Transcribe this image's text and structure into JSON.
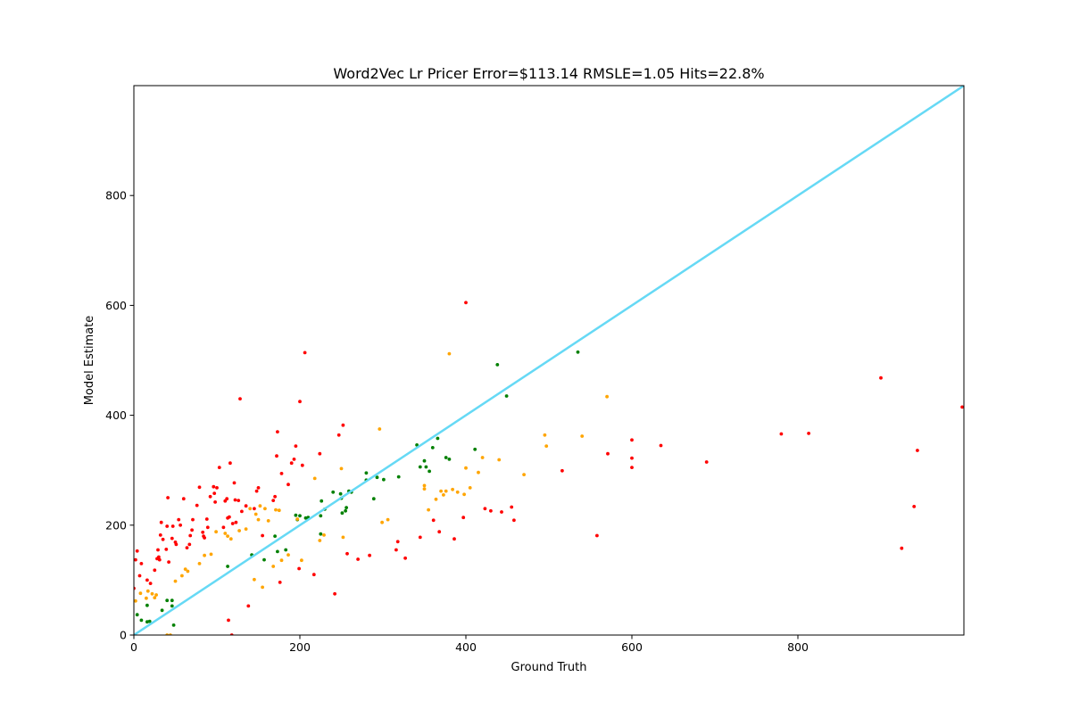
{
  "chart_data": {
    "type": "scatter",
    "title": "Word2Vec Lr Pricer Error=$113.14 RMSLE=1.05 Hits=22.8%",
    "xlabel": "Ground Truth",
    "ylabel": "Model Estimate",
    "xlim": [
      0,
      1000
    ],
    "ylim": [
      0,
      1000
    ],
    "xticks": [
      0,
      200,
      400,
      600,
      800
    ],
    "yticks": [
      0,
      200,
      400,
      600,
      800
    ],
    "grid": false,
    "reference_line": {
      "from": [
        0,
        0
      ],
      "to": [
        1000,
        1000
      ],
      "color": "#66d9f5"
    },
    "colors": {
      "green": "#008000",
      "orange": "#ffa500",
      "red": "#ff0000"
    },
    "series": [
      {
        "color": "green",
        "points": [
          [
            4,
            37
          ],
          [
            9,
            27
          ],
          [
            16,
            24
          ],
          [
            16,
            54
          ],
          [
            19,
            25
          ],
          [
            34,
            45
          ],
          [
            40,
            63
          ],
          [
            46,
            63
          ],
          [
            46,
            53
          ],
          [
            48,
            18
          ],
          [
            113,
            125
          ],
          [
            142,
            146
          ],
          [
            157,
            137
          ],
          [
            170,
            180
          ],
          [
            173,
            152
          ],
          [
            183,
            155
          ],
          [
            195,
            218
          ],
          [
            197,
            210
          ],
          [
            200,
            217
          ],
          [
            207,
            213
          ],
          [
            210,
            214
          ],
          [
            225,
            217
          ],
          [
            226,
            244
          ],
          [
            225,
            184
          ],
          [
            230,
            229
          ],
          [
            240,
            260
          ],
          [
            249,
            257
          ],
          [
            250,
            249
          ],
          [
            251,
            222
          ],
          [
            255,
            226
          ],
          [
            256,
            232
          ],
          [
            259,
            262
          ],
          [
            262,
            260
          ],
          [
            280,
            295
          ],
          [
            280,
            282
          ],
          [
            289,
            248
          ],
          [
            293,
            287
          ],
          [
            301,
            283
          ],
          [
            319,
            288
          ],
          [
            341,
            346
          ],
          [
            345,
            306
          ],
          [
            350,
            317
          ],
          [
            352,
            306
          ],
          [
            356,
            298
          ],
          [
            360,
            341
          ],
          [
            366,
            358
          ],
          [
            376,
            323
          ],
          [
            380,
            320
          ],
          [
            411,
            338
          ],
          [
            438,
            492
          ],
          [
            449,
            435
          ],
          [
            535,
            515
          ]
        ]
      },
      {
        "color": "orange",
        "points": [
          [
            2,
            62
          ],
          [
            8,
            76
          ],
          [
            15,
            67
          ],
          [
            17,
            80
          ],
          [
            22,
            75
          ],
          [
            25,
            68
          ],
          [
            27,
            73
          ],
          [
            40,
            0
          ],
          [
            44,
            0
          ],
          [
            50,
            98
          ],
          [
            58,
            108
          ],
          [
            62,
            120
          ],
          [
            65,
            116
          ],
          [
            79,
            130
          ],
          [
            85,
            145
          ],
          [
            93,
            147
          ],
          [
            99,
            188
          ],
          [
            110,
            185
          ],
          [
            113,
            180
          ],
          [
            117,
            175
          ],
          [
            127,
            190
          ],
          [
            135,
            193
          ],
          [
            140,
            230
          ],
          [
            145,
            101
          ],
          [
            147,
            220
          ],
          [
            150,
            210
          ],
          [
            152,
            235
          ],
          [
            155,
            87
          ],
          [
            158,
            230
          ],
          [
            162,
            208
          ],
          [
            168,
            125
          ],
          [
            171,
            228
          ],
          [
            175,
            227
          ],
          [
            178,
            136
          ],
          [
            186,
            146
          ],
          [
            197,
            211
          ],
          [
            202,
            136
          ],
          [
            218,
            285
          ],
          [
            224,
            172
          ],
          [
            229,
            182
          ],
          [
            250,
            303
          ],
          [
            252,
            178
          ],
          [
            296,
            375
          ],
          [
            299,
            205
          ],
          [
            306,
            210
          ],
          [
            350,
            272
          ],
          [
            350,
            266
          ],
          [
            355,
            228
          ],
          [
            364,
            247
          ],
          [
            370,
            262
          ],
          [
            373,
            255
          ],
          [
            376,
            262
          ],
          [
            380,
            512
          ],
          [
            384,
            265
          ],
          [
            390,
            260
          ],
          [
            398,
            256
          ],
          [
            400,
            304
          ],
          [
            405,
            268
          ],
          [
            415,
            296
          ],
          [
            420,
            323
          ],
          [
            440,
            319
          ],
          [
            470,
            292
          ],
          [
            495,
            364
          ],
          [
            497,
            344
          ],
          [
            540,
            362
          ],
          [
            570,
            434
          ]
        ]
      },
      {
        "color": "red",
        "points": [
          [
            0,
            85
          ],
          [
            2,
            137
          ],
          [
            4,
            153
          ],
          [
            7,
            108
          ],
          [
            9,
            130
          ],
          [
            16,
            100
          ],
          [
            20,
            94
          ],
          [
            25,
            118
          ],
          [
            28,
            139
          ],
          [
            29,
            155
          ],
          [
            30,
            142
          ],
          [
            31,
            137
          ],
          [
            32,
            182
          ],
          [
            33,
            205
          ],
          [
            35,
            174
          ],
          [
            39,
            156
          ],
          [
            40,
            198
          ],
          [
            41,
            250
          ],
          [
            42,
            133
          ],
          [
            46,
            176
          ],
          [
            47,
            198
          ],
          [
            50,
            169
          ],
          [
            51,
            165
          ],
          [
            54,
            210
          ],
          [
            56,
            200
          ],
          [
            60,
            248
          ],
          [
            64,
            159
          ],
          [
            67,
            165
          ],
          [
            68,
            181
          ],
          [
            70,
            191
          ],
          [
            71,
            210
          ],
          [
            76,
            236
          ],
          [
            79,
            269
          ],
          [
            83,
            187
          ],
          [
            84,
            180
          ],
          [
            85,
            177
          ],
          [
            88,
            211
          ],
          [
            89,
            196
          ],
          [
            92,
            252
          ],
          [
            96,
            270
          ],
          [
            97,
            258
          ],
          [
            98,
            242
          ],
          [
            100,
            268
          ],
          [
            103,
            305
          ],
          [
            108,
            196
          ],
          [
            110,
            244
          ],
          [
            112,
            248
          ],
          [
            113,
            213
          ],
          [
            114,
            27
          ],
          [
            115,
            215
          ],
          [
            116,
            313
          ],
          [
            118,
            0
          ],
          [
            119,
            203
          ],
          [
            121,
            277
          ],
          [
            122,
            246
          ],
          [
            123,
            205
          ],
          [
            126,
            245
          ],
          [
            128,
            430
          ],
          [
            130,
            225
          ],
          [
            135,
            235
          ],
          [
            138,
            53
          ],
          [
            145,
            230
          ],
          [
            148,
            262
          ],
          [
            150,
            268
          ],
          [
            155,
            181
          ],
          [
            168,
            245
          ],
          [
            170,
            252
          ],
          [
            172,
            326
          ],
          [
            173,
            370
          ],
          [
            176,
            96
          ],
          [
            178,
            294
          ],
          [
            186,
            274
          ],
          [
            190,
            313
          ],
          [
            193,
            320
          ],
          [
            195,
            344
          ],
          [
            199,
            121
          ],
          [
            200,
            425
          ],
          [
            203,
            309
          ],
          [
            206,
            514
          ],
          [
            217,
            110
          ],
          [
            224,
            330
          ],
          [
            242,
            75
          ],
          [
            247,
            364
          ],
          [
            252,
            382
          ],
          [
            257,
            148
          ],
          [
            270,
            138
          ],
          [
            284,
            145
          ],
          [
            316,
            155
          ],
          [
            318,
            170
          ],
          [
            327,
            140
          ],
          [
            345,
            178
          ],
          [
            361,
            209
          ],
          [
            368,
            188
          ],
          [
            386,
            175
          ],
          [
            397,
            214
          ],
          [
            400,
            605
          ],
          [
            423,
            230
          ],
          [
            430,
            226
          ],
          [
            443,
            224
          ],
          [
            455,
            233
          ],
          [
            458,
            209
          ],
          [
            516,
            299
          ],
          [
            558,
            181
          ],
          [
            571,
            330
          ],
          [
            600,
            355
          ],
          [
            600,
            322
          ],
          [
            600,
            305
          ],
          [
            635,
            345
          ],
          [
            690,
            315
          ],
          [
            780,
            366
          ],
          [
            813,
            367
          ],
          [
            900,
            468
          ],
          [
            925,
            158
          ],
          [
            940,
            234
          ],
          [
            944,
            336
          ],
          [
            998,
            415
          ]
        ]
      }
    ]
  }
}
